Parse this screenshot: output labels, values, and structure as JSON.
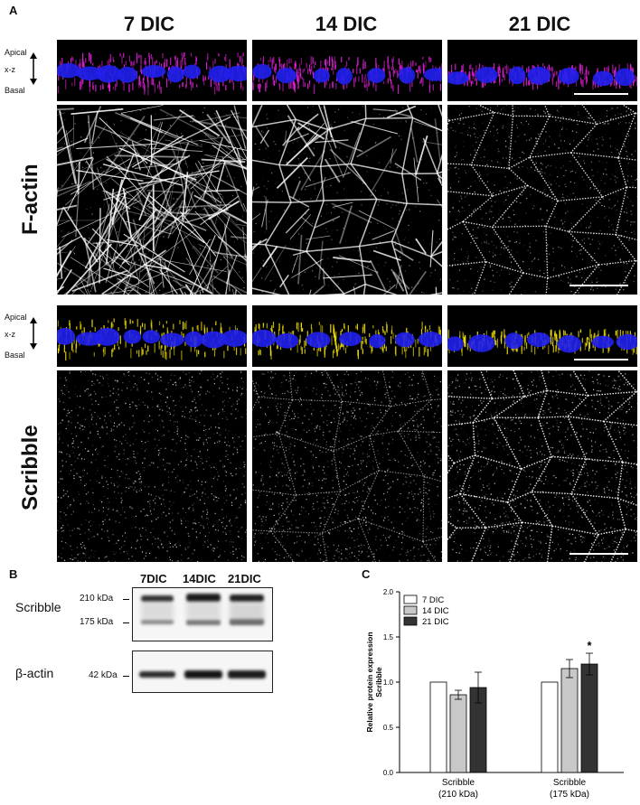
{
  "panel_labels": {
    "a": "A",
    "b": "B",
    "c": "C"
  },
  "columns": [
    "7 DIC",
    "14 DIC",
    "21 DIC"
  ],
  "rows": [
    "F-actin",
    "Scribble"
  ],
  "xz_labels": {
    "apical": "Apical",
    "xz": "x-z",
    "basal": "Basal"
  },
  "colors": {
    "factin_xz": "#e020d8",
    "scribble_xz": "#f0e000",
    "nuclei": "#2020f0"
  },
  "western": {
    "lanes": [
      "7DIC",
      "14DIC",
      "21DIC"
    ],
    "blots": [
      {
        "label": "Scribble",
        "markers": [
          "210 kDa",
          "175 kDa"
        ]
      },
      {
        "label": "β-actin",
        "markers": [
          "42 kDa"
        ]
      }
    ]
  },
  "chart_data": {
    "type": "bar",
    "ylabel": "Relative protein expression\nScribble",
    "ylim": [
      0,
      2.0
    ],
    "yticks": [
      0.0,
      0.5,
      1.0,
      1.5,
      2.0
    ],
    "categories": [
      "Scribble\n(210 kDa)",
      "Scribble\n(175 kDa)"
    ],
    "series": [
      {
        "name": "7 DIC",
        "color": "#ffffff",
        "values": [
          1.0,
          1.0
        ],
        "errors": [
          0,
          0
        ]
      },
      {
        "name": "14 DIC",
        "color": "#c8c8c8",
        "values": [
          0.86,
          1.15
        ],
        "errors": [
          0.05,
          0.1
        ]
      },
      {
        "name": "21 DIC",
        "color": "#333333",
        "values": [
          0.94,
          1.2
        ],
        "errors": [
          0.17,
          0.12
        ]
      }
    ],
    "annotations": [
      {
        "category": 1,
        "series": 2,
        "text": "*"
      }
    ]
  }
}
